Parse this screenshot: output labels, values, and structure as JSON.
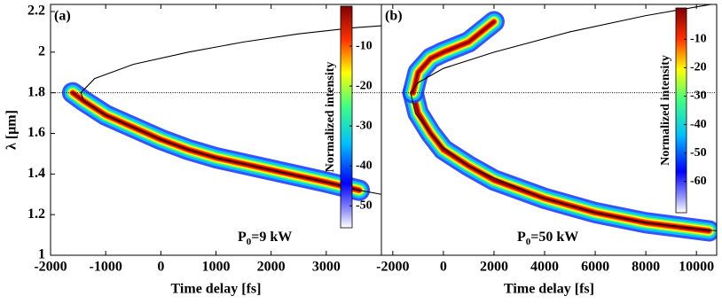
{
  "chart_data": [
    {
      "type": "spectrogram",
      "panel_label": "(a)",
      "annotation": {
        "text": "P",
        "sub": "0",
        "rest": "=9 kW"
      },
      "xlabel": "Time delay [fs]",
      "ylabel": "λ [μm]",
      "xlim": [
        -2000,
        4000
      ],
      "xticks": [
        -2000,
        -1000,
        0,
        1000,
        2000,
        3000
      ],
      "ylim": [
        1,
        2.235
      ],
      "yticks": [
        1,
        1.2,
        1.4,
        1.6,
        1.8,
        2,
        2.2
      ],
      "hline": 1.8,
      "ridges": [
        {
          "x": [
            -1600,
            -1400,
            -1000,
            -500,
            0,
            500,
            1000,
            1500,
            2000,
            2500,
            3000,
            3600
          ],
          "y": [
            1.8,
            1.76,
            1.69,
            1.63,
            1.57,
            1.52,
            1.48,
            1.45,
            1.42,
            1.39,
            1.36,
            1.32
          ]
        }
      ],
      "curve": {
        "x": [
          4000,
          3500,
          2500,
          1500,
          500,
          -500,
          -1200,
          -1450,
          -1400,
          -1000,
          -500,
          0,
          500,
          1000,
          1500,
          2000,
          2500,
          3000,
          3600,
          4000
        ],
        "y": [
          2.13,
          2.12,
          2.09,
          2.05,
          2.0,
          1.94,
          1.87,
          1.8,
          1.76,
          1.69,
          1.63,
          1.57,
          1.52,
          1.48,
          1.45,
          1.42,
          1.39,
          1.36,
          1.32,
          1.3
        ]
      },
      "colorbar": {
        "label": "Normalized intensity",
        "lim": [
          -55.5,
          0
        ],
        "ticks": [
          -10,
          -20,
          -30,
          -40,
          -50
        ]
      }
    },
    {
      "type": "spectrogram",
      "panel_label": "(b)",
      "annotation": {
        "text": "P",
        "sub": "0",
        "rest": "=50 kW"
      },
      "xlabel": "Time delay [fs]",
      "xlim": [
        -2450,
        10800
      ],
      "xticks": [
        -2000,
        0,
        2000,
        4000,
        6000,
        8000,
        10000
      ],
      "ylim": [
        1,
        2.235
      ],
      "hline": 1.8,
      "ridges": [
        {
          "x": [
            -1200,
            -1000,
            -500,
            0,
            1000,
            2000,
            4000,
            6000,
            8000,
            10500
          ],
          "y": [
            1.8,
            1.7,
            1.6,
            1.52,
            1.44,
            1.37,
            1.28,
            1.21,
            1.16,
            1.12
          ]
        },
        {
          "x": [
            -1200,
            -1000,
            -500,
            0,
            1000,
            1500,
            2000
          ],
          "y": [
            1.8,
            1.9,
            1.97,
            2.0,
            2.05,
            2.1,
            2.15
          ]
        }
      ],
      "curve": {
        "x": [
          10800,
          8000,
          5000,
          2000,
          0,
          -1000,
          -1300,
          -1100,
          -500,
          0,
          1000,
          2000,
          4000,
          6000,
          8000,
          10800
        ],
        "y": [
          2.24,
          2.18,
          2.1,
          2.0,
          1.92,
          1.85,
          1.8,
          1.7,
          1.6,
          1.53,
          1.44,
          1.38,
          1.28,
          1.21,
          1.16,
          1.12
        ]
      },
      "colorbar": {
        "label": "Normalized intensity",
        "lim": [
          -71,
          1
        ],
        "ticks": [
          -10,
          -20,
          -30,
          -40,
          -50,
          -60
        ]
      }
    }
  ]
}
